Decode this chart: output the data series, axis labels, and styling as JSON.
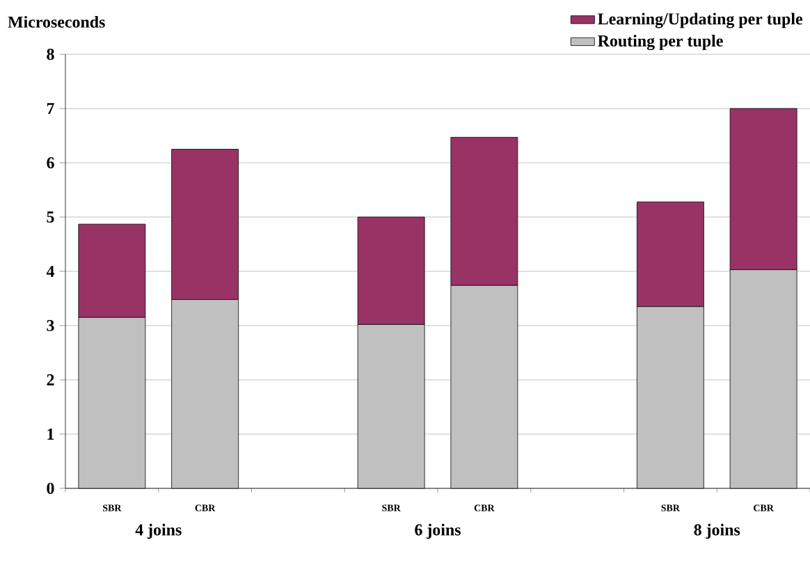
{
  "chart_data": {
    "type": "bar",
    "stacked": true,
    "ylabel": "Microseconds",
    "categories": [
      "SBR",
      "CBR",
      null,
      "SBR",
      "CBR",
      null,
      "SBR",
      "CBR"
    ],
    "series": [
      {
        "name": "Routing per tuple",
        "color": "#c0c0c0",
        "values": [
          3.15,
          3.48,
          null,
          3.02,
          3.74,
          null,
          3.35,
          4.03
        ]
      },
      {
        "name": "Learning/Updating per tuple",
        "color": "#993366",
        "values": [
          1.72,
          2.77,
          null,
          1.98,
          2.73,
          null,
          1.93,
          2.97
        ]
      }
    ],
    "ylim": [
      0,
      8
    ],
    "yticks": [
      0,
      1,
      2,
      3,
      4,
      5,
      6,
      7,
      8
    ],
    "grid": "y",
    "legend": "top right",
    "annotations": [
      "4 joins",
      "6 joins",
      "8 joins"
    ]
  }
}
